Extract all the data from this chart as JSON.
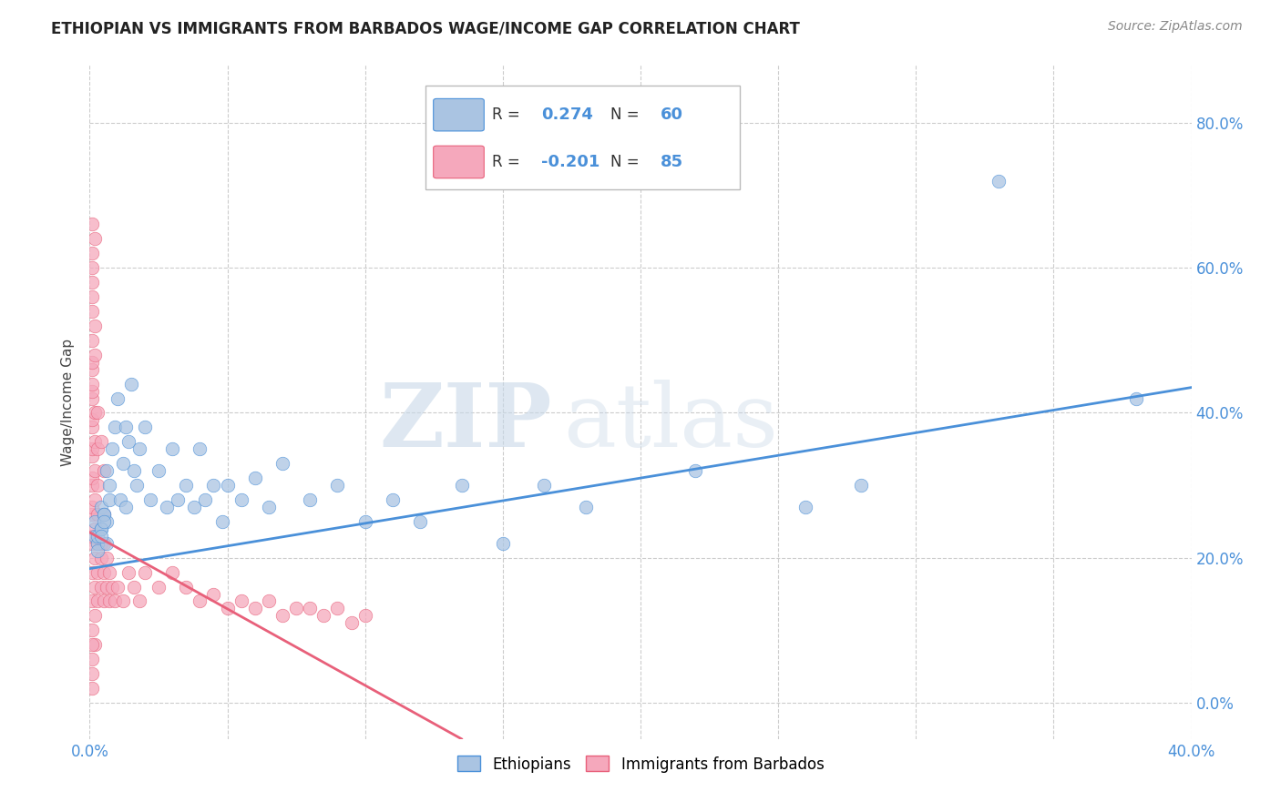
{
  "title": "ETHIOPIAN VS IMMIGRANTS FROM BARBADOS WAGE/INCOME GAP CORRELATION CHART",
  "source": "Source: ZipAtlas.com",
  "ylabel": "Wage/Income Gap",
  "ytick_vals": [
    0.0,
    0.2,
    0.4,
    0.6,
    0.8
  ],
  "xrange": [
    0.0,
    0.4
  ],
  "yrange": [
    -0.05,
    0.88
  ],
  "legend1_label": "Ethiopians",
  "legend2_label": "Immigrants from Barbados",
  "r1": 0.274,
  "n1": 60,
  "r2": -0.201,
  "n2": 85,
  "color_blue": "#aac4e2",
  "color_pink": "#f5a8bc",
  "line_blue": "#4a90d9",
  "line_pink": "#e8607a",
  "watermark_zip": "ZIP",
  "watermark_atlas": "atlas",
  "blue_line_x": [
    0.0,
    0.4
  ],
  "blue_line_y": [
    0.185,
    0.435
  ],
  "pink_line_x": [
    0.0,
    0.135
  ],
  "pink_line_y": [
    0.235,
    -0.05
  ],
  "ethiopians_x": [
    0.002,
    0.002,
    0.004,
    0.003,
    0.005,
    0.003,
    0.004,
    0.006,
    0.003,
    0.005,
    0.004,
    0.006,
    0.007,
    0.005,
    0.004,
    0.006,
    0.008,
    0.007,
    0.009,
    0.01,
    0.012,
    0.011,
    0.013,
    0.015,
    0.014,
    0.013,
    0.016,
    0.018,
    0.017,
    0.02,
    0.022,
    0.025,
    0.028,
    0.03,
    0.032,
    0.035,
    0.038,
    0.04,
    0.042,
    0.045,
    0.048,
    0.05,
    0.055,
    0.06,
    0.065,
    0.07,
    0.08,
    0.09,
    0.1,
    0.11,
    0.12,
    0.135,
    0.15,
    0.165,
    0.18,
    0.22,
    0.26,
    0.28,
    0.33,
    0.38
  ],
  "ethiopians_y": [
    0.25,
    0.23,
    0.27,
    0.22,
    0.26,
    0.21,
    0.24,
    0.25,
    0.23,
    0.26,
    0.24,
    0.22,
    0.28,
    0.25,
    0.23,
    0.32,
    0.35,
    0.3,
    0.38,
    0.42,
    0.33,
    0.28,
    0.38,
    0.44,
    0.36,
    0.27,
    0.32,
    0.35,
    0.3,
    0.38,
    0.28,
    0.32,
    0.27,
    0.35,
    0.28,
    0.3,
    0.27,
    0.35,
    0.28,
    0.3,
    0.25,
    0.3,
    0.28,
    0.31,
    0.27,
    0.33,
    0.28,
    0.3,
    0.25,
    0.28,
    0.25,
    0.3,
    0.22,
    0.3,
    0.27,
    0.32,
    0.27,
    0.3,
    0.72,
    0.42
  ],
  "barbados_x": [
    0.001,
    0.001,
    0.001,
    0.001,
    0.001,
    0.001,
    0.001,
    0.001,
    0.001,
    0.001,
    0.001,
    0.001,
    0.001,
    0.001,
    0.001,
    0.001,
    0.001,
    0.001,
    0.001,
    0.001,
    0.002,
    0.002,
    0.002,
    0.002,
    0.002,
    0.002,
    0.002,
    0.002,
    0.002,
    0.003,
    0.003,
    0.003,
    0.003,
    0.003,
    0.003,
    0.004,
    0.004,
    0.004,
    0.005,
    0.005,
    0.005,
    0.005,
    0.006,
    0.006,
    0.007,
    0.007,
    0.008,
    0.009,
    0.01,
    0.012,
    0.014,
    0.016,
    0.018,
    0.02,
    0.025,
    0.03,
    0.035,
    0.04,
    0.045,
    0.05,
    0.055,
    0.06,
    0.065,
    0.07,
    0.075,
    0.08,
    0.085,
    0.09,
    0.095,
    0.1,
    0.001,
    0.001,
    0.001,
    0.001,
    0.001,
    0.002,
    0.002,
    0.003,
    0.004,
    0.005,
    0.001,
    0.001,
    0.001,
    0.001,
    0.002
  ],
  "barbados_y": [
    0.5,
    0.46,
    0.42,
    0.38,
    0.34,
    0.3,
    0.26,
    0.22,
    0.18,
    0.14,
    0.1,
    0.06,
    0.02,
    0.47,
    0.43,
    0.39,
    0.35,
    0.31,
    0.27,
    0.23,
    0.28,
    0.24,
    0.2,
    0.16,
    0.12,
    0.08,
    0.32,
    0.36,
    0.4,
    0.22,
    0.18,
    0.14,
    0.26,
    0.3,
    0.35,
    0.2,
    0.16,
    0.22,
    0.18,
    0.14,
    0.22,
    0.26,
    0.2,
    0.16,
    0.18,
    0.14,
    0.16,
    0.14,
    0.16,
    0.14,
    0.18,
    0.16,
    0.14,
    0.18,
    0.16,
    0.18,
    0.16,
    0.14,
    0.15,
    0.13,
    0.14,
    0.13,
    0.14,
    0.12,
    0.13,
    0.13,
    0.12,
    0.13,
    0.11,
    0.12,
    0.58,
    0.54,
    0.62,
    0.66,
    0.44,
    0.48,
    0.52,
    0.4,
    0.36,
    0.32,
    0.04,
    0.08,
    0.56,
    0.6,
    0.64
  ]
}
